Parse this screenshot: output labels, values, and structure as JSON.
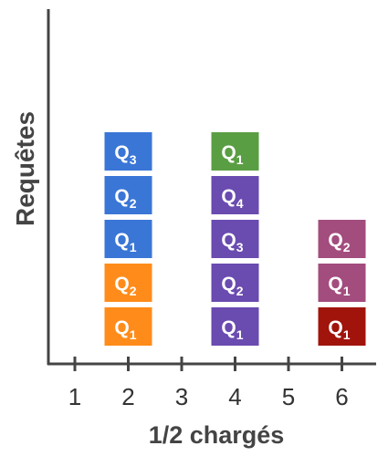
{
  "axes": {
    "ylabel": "Requêtes",
    "xlabel": "1/2 chargés",
    "x_ticks": [
      "1",
      "2",
      "3",
      "4",
      "5",
      "6"
    ]
  },
  "columns": [
    {
      "x": 2,
      "blocks": [
        {
          "prefix": "Q",
          "sub": "1",
          "color": "#FF8C1A"
        },
        {
          "prefix": "Q",
          "sub": "2",
          "color": "#FF8C1A"
        },
        {
          "prefix": "Q",
          "sub": "1",
          "color": "#3A76D6"
        },
        {
          "prefix": "Q",
          "sub": "2",
          "color": "#3A76D6"
        },
        {
          "prefix": "Q",
          "sub": "3",
          "color": "#3A76D6"
        }
      ]
    },
    {
      "x": 4,
      "blocks": [
        {
          "prefix": "Q",
          "sub": "1",
          "color": "#6A4BB0"
        },
        {
          "prefix": "Q",
          "sub": "2",
          "color": "#6A4BB0"
        },
        {
          "prefix": "Q",
          "sub": "3",
          "color": "#6A4BB0"
        },
        {
          "prefix": "Q",
          "sub": "4",
          "color": "#6A4BB0"
        },
        {
          "prefix": "Q",
          "sub": "1",
          "color": "#5A9E43"
        }
      ]
    },
    {
      "x": 6,
      "blocks": [
        {
          "prefix": "Q",
          "sub": "1",
          "color": "#A0140C"
        },
        {
          "prefix": "Q",
          "sub": "1",
          "color": "#A34C7E"
        },
        {
          "prefix": "Q",
          "sub": "2",
          "color": "#A34C7E"
        }
      ]
    }
  ]
}
